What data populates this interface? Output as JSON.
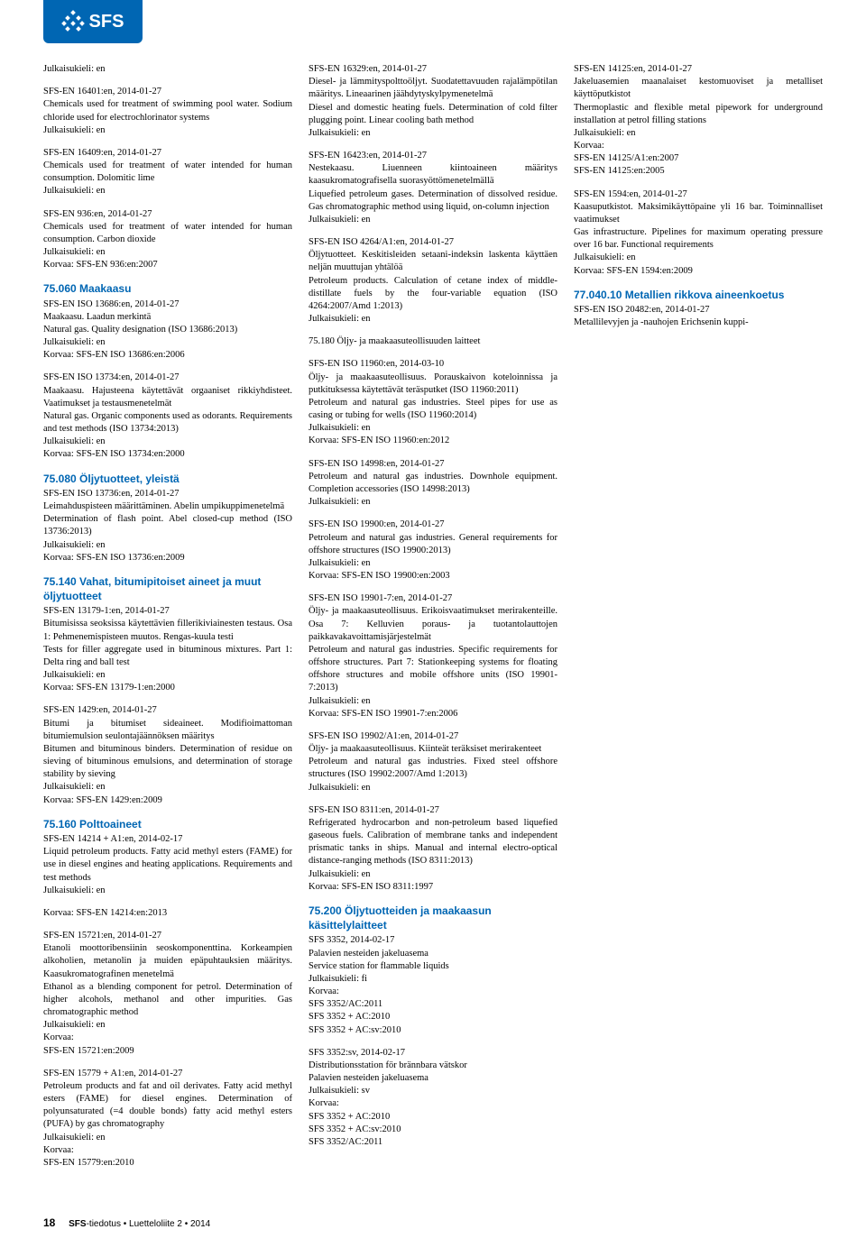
{
  "logo": {
    "text": "SFS"
  },
  "footer": {
    "page": "18",
    "publication": "SFS",
    "rest": "-tiedotus • Luetteloliite 2 • 2014"
  },
  "colors": {
    "brand": "#0066b3",
    "text": "#000000",
    "bg": "#ffffff"
  },
  "columns": [
    [
      {
        "type": "entry",
        "text": "Julkaisukieli: en"
      },
      {
        "type": "entry",
        "text": "SFS-EN 16401:en, 2014-01-27\nChemicals used for treatment of swimming pool water. Sodium chloride used for electrochlorinator systems\nJulkaisukieli: en"
      },
      {
        "type": "entry",
        "text": "SFS-EN 16409:en, 2014-01-27\nChemicals used for treatment of water intended for human consumption. Dolomitic lime\nJulkaisukieli: en"
      },
      {
        "type": "entry",
        "text": "SFS-EN 936:en, 2014-01-27\nChemicals used for treatment of water intended for human consumption. Carbon dioxide\nJulkaisukieli: en\nKorvaa: SFS-EN 936:en:2007"
      },
      {
        "type": "heading",
        "text": "75.060 Maakaasu"
      },
      {
        "type": "entry",
        "text": "SFS-EN ISO 13686:en, 2014-01-27\nMaakaasu. Laadun merkintä\nNatural gas. Quality designation (ISO 13686:2013)\nJulkaisukieli: en\nKorvaa: SFS-EN ISO 13686:en:2006"
      },
      {
        "type": "entry",
        "text": "SFS-EN ISO 13734:en, 2014-01-27\nMaakaasu. Hajusteena käytettävät orgaaniset rikkiyhdisteet. Vaatimukset ja testausmenetelmät\nNatural gas. Organic components used as odorants. Requirements and test methods (ISO 13734:2013)\nJulkaisukieli: en\nKorvaa: SFS-EN ISO 13734:en:2000"
      },
      {
        "type": "heading",
        "text": "75.080 Öljytuotteet, yleistä"
      },
      {
        "type": "entry",
        "text": "SFS-EN ISO 13736:en, 2014-01-27\nLeimahduspisteen määrittäminen. Abelin umpikuppimenetelmä\nDetermination of flash point. Abel closed-cup method (ISO 13736:2013)\nJulkaisukieli: en\nKorvaa: SFS-EN ISO 13736:en:2009"
      },
      {
        "type": "heading",
        "text": "75.140 Vahat, bitumipitoiset aineet ja muut öljytuotteet"
      },
      {
        "type": "entry",
        "text": "SFS-EN 13179-1:en, 2014-01-27\nBitumisissa seoksissa käytettävien fillerikiviainesten testaus. Osa 1: Pehmenemispisteen muutos. Rengas-kuula testi\nTests for filler aggregate used in bituminous mixtures. Part 1: Delta ring and ball test\nJulkaisukieli: en\nKorvaa: SFS-EN 13179-1:en:2000"
      },
      {
        "type": "entry",
        "text": "SFS-EN 1429:en, 2014-01-27\nBitumi ja bitumiset sideaineet. Modifioimattoman bitumiemulsion seulontajäännöksen määritys\nBitumen and bituminous binders. Determination of residue on sieving of bituminous emulsions, and determination of storage stability by sieving\nJulkaisukieli: en\nKorvaa: SFS-EN 1429:en:2009"
      },
      {
        "type": "heading",
        "text": "75.160 Polttoaineet"
      },
      {
        "type": "entry",
        "text": "SFS-EN 14214 + A1:en, 2014-02-17\nLiquid petroleum products. Fatty acid methyl esters (FAME) for use in diesel engines and heating applications. Requirements and test methods\nJulkaisukieli: en"
      }
    ],
    [
      {
        "type": "entry",
        "text": "Korvaa: SFS-EN 14214:en:2013"
      },
      {
        "type": "entry",
        "text": "SFS-EN 15721:en, 2014-01-27\nEtanoli moottoribensiinin seoskomponenttina. Korkeampien alkoholien, metanolin ja muiden epäpuhtauksien määritys. Kaasukromatografinen menetelmä\nEthanol as a blending component for petrol. Determination of higher alcohols, methanol and other impurities. Gas chromatographic method\nJulkaisukieli: en\nKorvaa:\nSFS-EN 15721:en:2009"
      },
      {
        "type": "entry",
        "text": "SFS-EN 15779 + A1:en, 2014-01-27\nPetroleum products and fat and oil derivates. Fatty acid methyl esters (FAME) for diesel engines. Determination of polyunsaturated (=4 double bonds) fatty acid methyl esters (PUFA) by gas chromatography\nJulkaisukieli: en\nKorvaa:\nSFS-EN 15779:en:2010"
      },
      {
        "type": "entry",
        "text": "SFS-EN 16329:en, 2014-01-27\nDiesel- ja lämmityspolttoöljyt. Suodatettavuuden rajalämpötilan määritys. Lineaarinen jäähdytyskylpymenetelmä\nDiesel and domestic heating fuels. Determination of cold filter plugging point. Linear cooling bath method\nJulkaisukieli: en"
      },
      {
        "type": "entry",
        "text": "SFS-EN 16423:en, 2014-01-27\nNestekaasu. Liuenneen kiintoaineen määritys kaasukromatografisella suorasyöttömenetelmällä\nLiquefied petroleum gases. Determination of dissolved residue. Gas chromatographic method using liquid, on-column injection\nJulkaisukieli: en"
      },
      {
        "type": "entry",
        "text": "SFS-EN ISO 4264/A1:en, 2014-01-27\nÖljytuotteet. Keskitisleiden setaani-indeksin laskenta käyttäen neljän muuttujan yhtälöä\nPetroleum products. Calculation of cetane index of middle-distillate fuels by the four-variable equation (ISO 4264:2007/Amd 1:2013)\nJulkaisukieli: en"
      },
      {
        "type": "entry",
        "text": "75.180 Öljy- ja maakaasuteollisuuden laitteet"
      },
      {
        "type": "entry",
        "text": "SFS-EN ISO 11960:en, 2014-03-10\nÖljy- ja maakaasuteollisuus. Porauskaivon koteloinnissa ja putkituksessa käytettävät teräsputket (ISO 11960:2011)\nPetroleum and natural gas industries. Steel pipes for use as casing or tubing for wells (ISO 11960:2014)\nJulkaisukieli: en\nKorvaa: SFS-EN ISO 11960:en:2012"
      },
      {
        "type": "entry",
        "text": "SFS-EN ISO 14998:en, 2014-01-27\nPetroleum and natural gas industries. Downhole equipment. Completion accessories (ISO 14998:2013)\nJulkaisukieli: en"
      },
      {
        "type": "entry",
        "text": "SFS-EN ISO 19900:en, 2014-01-27\nPetroleum and natural gas industries. General requirements for offshore structures (ISO 19900:2013)\nJulkaisukieli: en\nKorvaa: SFS-EN ISO 19900:en:2003"
      }
    ],
    [
      {
        "type": "entry",
        "text": "SFS-EN ISO 19901-7:en, 2014-01-27\nÖljy- ja maakaasuteollisuus. Erikoisvaatimukset merirakenteille. Osa 7: Kelluvien poraus- ja tuotantolauttojen paikkavakavoittamisjärjestelmät\nPetroleum and natural gas industries. Specific requirements for offshore structures. Part 7: Stationkeeping systems for floating offshore structures and mobile offshore units (ISO 19901-7:2013)\nJulkaisukieli: en\nKorvaa: SFS-EN ISO 19901-7:en:2006"
      },
      {
        "type": "entry",
        "text": "SFS-EN ISO 19902/A1:en, 2014-01-27\nÖljy- ja maakaasuteollisuus. Kiinteät teräksiset merirakenteet\nPetroleum and natural gas industries. Fixed steel offshore structures (ISO 19902:2007/Amd 1:2013)\nJulkaisukieli: en"
      },
      {
        "type": "entry",
        "text": "SFS-EN ISO 8311:en, 2014-01-27\nRefrigerated hydrocarbon and non-petroleum based liquefied gaseous fuels. Calibration of membrane tanks and independent prismatic tanks in ships. Manual and internal electro-optical distance-ranging methods (ISO 8311:2013)\nJulkaisukieli: en\nKorvaa: SFS-EN ISO 8311:1997"
      },
      {
        "type": "heading",
        "text": "75.200 Öljytuotteiden ja maakaasun käsittelylaitteet"
      },
      {
        "type": "entry",
        "text": "SFS 3352, 2014-02-17\nPalavien nesteiden jakeluasema\nService station for flammable liquids\nJulkaisukieli: fi\nKorvaa:\nSFS 3352/AC:2011\nSFS 3352 + AC:2010\nSFS 3352 + AC:sv:2010"
      },
      {
        "type": "entry",
        "text": "SFS 3352:sv, 2014-02-17\nDistributionsstation för brännbara vätskor\nPalavien nesteiden jakeluasema\nJulkaisukieli: sv\nKorvaa:\nSFS 3352 + AC:2010\nSFS 3352 + AC:sv:2010\nSFS 3352/AC:2011"
      },
      {
        "type": "entry",
        "text": "SFS-EN 14125:en, 2014-01-27\nJakeluasemien maanalaiset kestomuoviset ja metalliset käyttöputkistot\nThermoplastic and flexible metal pipework for underground installation at petrol filling stations\nJulkaisukieli: en\nKorvaa:\nSFS-EN 14125/A1:en:2007\nSFS-EN 14125:en:2005"
      },
      {
        "type": "entry",
        "text": "SFS-EN 1594:en, 2014-01-27\nKaasuputkistot. Maksimikäyttöpaine yli 16 bar. Toiminnalliset vaatimukset\nGas infrastructure. Pipelines for maximum operating pressure over 16 bar. Functional requirements\nJulkaisukieli: en\nKorvaa: SFS-EN 1594:en:2009"
      },
      {
        "type": "heading",
        "text": "77.040.10 Metallien rikkova aineenkoetus"
      },
      {
        "type": "entry",
        "text": "SFS-EN ISO 20482:en, 2014-01-27\nMetallilevyjen ja -nauhojen Erichsenin kuppi-"
      }
    ]
  ]
}
